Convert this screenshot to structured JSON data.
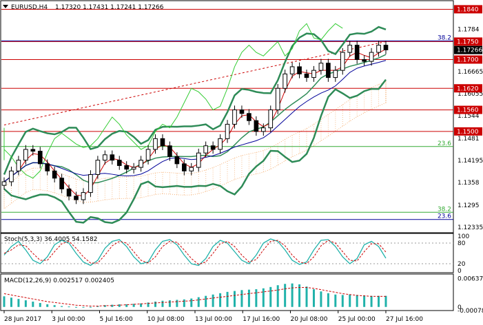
{
  "header": {
    "symbol_tf": "EURUSD,H4",
    "ohlc": "1.17320 1.17431 1.17241 1.17266",
    "icon": "dropdown-triangle-icon"
  },
  "colors": {
    "bg": "#ffffff",
    "frame": "#000000",
    "candle": "#000000",
    "red_line": "#cc0000",
    "navy_line": "#000099",
    "light_green": "#33cc33",
    "bollinger": "#2e8b57",
    "cloud": "#f4a460",
    "fib_green": "#33aa33",
    "price_label_bg": "#cc0000",
    "current_label_bg": "#000000",
    "stoch_main": "#20b2aa",
    "stoch_signal": "#cc0000",
    "macd_hist": "#20b2aa",
    "macd_signal": "#cc0000"
  },
  "chart_data": [
    {
      "type": "candlestick",
      "title": "EURUSD,H4",
      "ylim": [
        1.122,
        1.186
      ],
      "y_ticks": [
        1.1784,
        1.1723,
        1.16665,
        1.16055,
        1.1544,
        1.1481,
        1.14195,
        1.1358,
        1.1295,
        1.12335
      ],
      "x_labels": [
        "28 Jun 2017",
        "3 Jul 00:00",
        "5 Jul 16:00",
        "10 Jul 08:00",
        "13 Jul 00:00",
        "17 Jul 16:00",
        "20 Jul 08:00",
        "25 Jul 00:00",
        "27 Jul 16:00"
      ],
      "close": [
        1.136,
        1.139,
        1.142,
        1.145,
        1.1445,
        1.141,
        1.139,
        1.137,
        1.134,
        1.132,
        1.131,
        1.133,
        1.138,
        1.142,
        1.1435,
        1.142,
        1.1405,
        1.1395,
        1.14,
        1.142,
        1.145,
        1.148,
        1.146,
        1.143,
        1.141,
        1.139,
        1.14,
        1.144,
        1.146,
        1.145,
        1.148,
        1.152,
        1.156,
        1.155,
        1.153,
        1.15,
        1.151,
        1.156,
        1.162,
        1.166,
        1.168,
        1.166,
        1.165,
        1.167,
        1.169,
        1.165,
        1.167,
        1.172,
        1.174,
        1.17,
        1.1695,
        1.172,
        1.174,
        1.1727
      ],
      "price_levels": [
        1.184,
        1.175,
        1.17,
        1.162,
        1.156,
        1.15
      ],
      "current_price": 1.17266,
      "fib_levels": [
        {
          "label": "38.2",
          "value": 1.1752,
          "color": "#000099"
        },
        {
          "label": "23.6",
          "value": 1.1458,
          "color": "#33aa33"
        },
        {
          "label": "38.2",
          "value": 1.1275,
          "color": "#33aa33"
        },
        {
          "label": "23.6",
          "value": 1.1255,
          "color": "#000099"
        }
      ],
      "trendline": {
        "from": [
          0,
          1.1518
        ],
        "to": [
          53,
          1.175
        ],
        "style": "dashed",
        "color": "#cc0000"
      }
    },
    {
      "type": "line",
      "title": "Stoch(5,3,3) 36.4005 54.1582",
      "ylim": [
        0,
        100
      ],
      "levels": [
        80,
        20
      ],
      "y_ticks": [
        100,
        80,
        20,
        0
      ],
      "series": [
        {
          "values": [
            45,
            70,
            85,
            60,
            30,
            20,
            40,
            75,
            88,
            80,
            50,
            25,
            15,
            30,
            65,
            85,
            90,
            70,
            40,
            20,
            25,
            60,
            85,
            90,
            75,
            45,
            20,
            15,
            35,
            70,
            88,
            80,
            55,
            30,
            20,
            45,
            80,
            92,
            85,
            60,
            30,
            18,
            25,
            60,
            88,
            90,
            70,
            40,
            20,
            35,
            75,
            85,
            70,
            36
          ]
        },
        {
          "values": [
            50,
            60,
            75,
            72,
            50,
            30,
            30,
            55,
            78,
            85,
            65,
            40,
            22,
            22,
            45,
            72,
            85,
            80,
            55,
            30,
            22,
            40,
            70,
            85,
            82,
            60,
            35,
            18,
            25,
            50,
            78,
            85,
            70,
            45,
            25,
            32,
            60,
            85,
            88,
            72,
            45,
            25,
            20,
            40,
            72,
            88,
            80,
            55,
            30,
            28,
            55,
            78,
            78,
            54
          ]
        }
      ]
    },
    {
      "type": "bar",
      "title": "MACD(12,26,9) 0.002517 0.002405",
      "ylim": [
        -0.0005,
        0.0068
      ],
      "y_ticks": [
        0.006378,
        0.0,
        -0.000787
      ],
      "series": [
        {
          "values": [
            0.0024,
            0.0021,
            0.0018,
            0.0015,
            0.0012,
            0.0009,
            0.0006,
            0.0004,
            0.0002,
            0.0001,
            0.0,
            -0.0001,
            0.0,
            0.0002,
            0.0004,
            0.0005,
            0.0006,
            0.0006,
            0.0007,
            0.0008,
            0.001,
            0.0012,
            0.0014,
            0.0015,
            0.0016,
            0.0017,
            0.0019,
            0.0022,
            0.0025,
            0.0028,
            0.0031,
            0.0034,
            0.0036,
            0.0038,
            0.0039,
            0.004,
            0.0042,
            0.0045,
            0.0049,
            0.0052,
            0.0053,
            0.0051,
            0.0046,
            0.004,
            0.0035,
            0.0031,
            0.0028,
            0.0027,
            0.0028,
            0.0027,
            0.0026,
            0.0025,
            0.0025,
            0.0025
          ]
        },
        {
          "values": [
            0.003,
            0.0027,
            0.0024,
            0.0021,
            0.0018,
            0.0015,
            0.0012,
            0.001,
            0.0008,
            0.0006,
            0.0004,
            0.0003,
            0.0002,
            0.0002,
            0.0003,
            0.0003,
            0.0004,
            0.0005,
            0.0006,
            0.0007,
            0.0008,
            0.0009,
            0.001,
            0.0011,
            0.0012,
            0.0013,
            0.0014,
            0.0016,
            0.0018,
            0.002,
            0.0022,
            0.0024,
            0.0026,
            0.0028,
            0.003,
            0.0032,
            0.0034,
            0.0036,
            0.0038,
            0.0041,
            0.0043,
            0.0044,
            0.0044,
            0.0042,
            0.0039,
            0.0036,
            0.0033,
            0.003,
            0.0028,
            0.0026,
            0.0025,
            0.0024,
            0.0024,
            0.0024
          ]
        }
      ]
    }
  ]
}
